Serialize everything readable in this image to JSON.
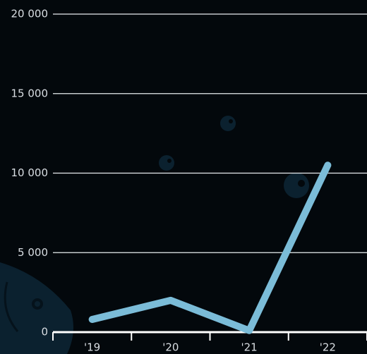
{
  "chart_data": {
    "type": "line",
    "categories": [
      "'19",
      "'20",
      "'21",
      "'22"
    ],
    "values": [
      800,
      2000,
      100,
      10500
    ],
    "color": "#7bbcd8",
    "ylim": [
      0,
      20000
    ],
    "yticks": [
      {
        "value": 0,
        "label": "0"
      },
      {
        "value": 5000,
        "label": "5 000"
      },
      {
        "value": 10000,
        "label": "10 000"
      },
      {
        "value": 15000,
        "label": "15 000"
      },
      {
        "value": 20000,
        "label": "20 000"
      }
    ],
    "grid": true
  }
}
